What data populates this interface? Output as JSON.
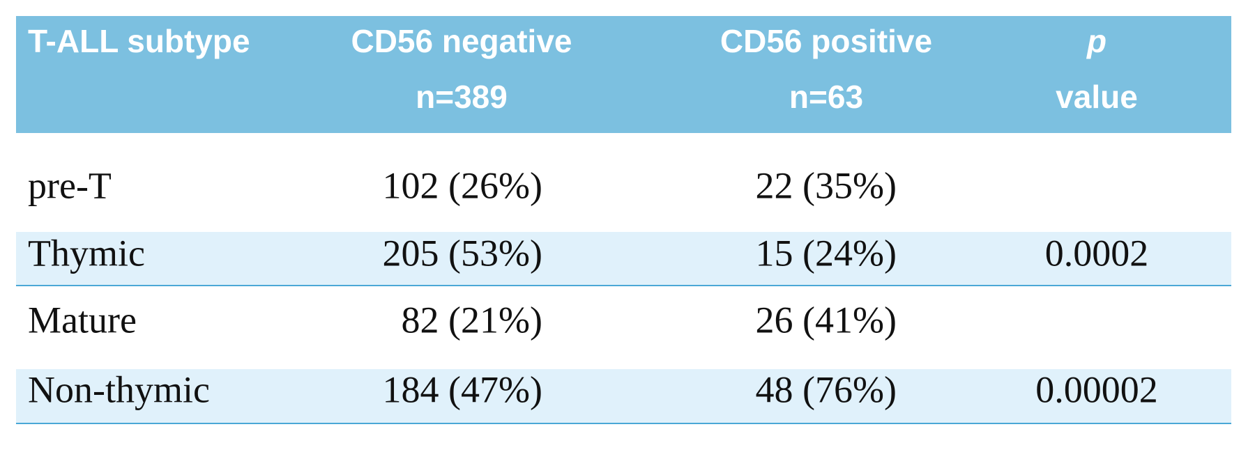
{
  "table": {
    "header": [
      [
        "T-ALL subtype"
      ],
      [
        "CD56 negative",
        "n=389"
      ],
      [
        "CD56 positive",
        "n=63"
      ],
      [
        "p",
        "value"
      ]
    ],
    "rows": [
      [
        "pre-T",
        "102 (26%)",
        "22 (35%)"
      ],
      [
        "Thymic",
        "205 (53%)",
        "15 (24%)",
        "0.0002"
      ],
      [
        "Mature",
        "82 (21%)",
        "26 (41%)"
      ],
      [
        "Non-thymic",
        "184 (47%)",
        "48 (76%)",
        "0.00002"
      ]
    ]
  }
}
